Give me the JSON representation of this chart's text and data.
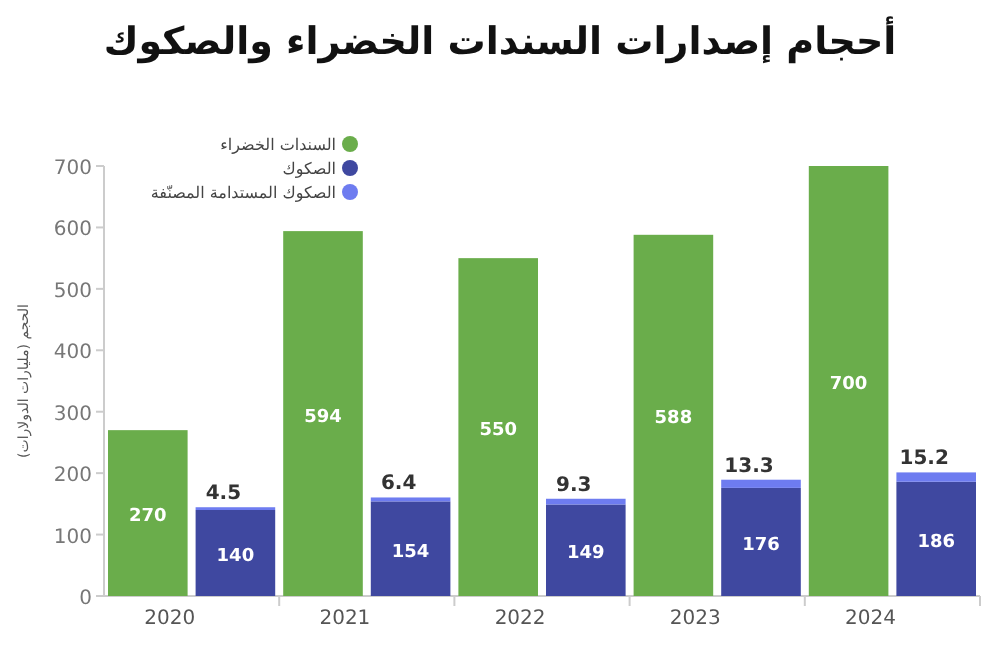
{
  "chart_data": {
    "type": "bar",
    "title": "أحجام إصدارات السندات الخضراء والصكوك",
    "ylabel": "الحجم (مليارات الدولارات)",
    "categories": [
      "2020",
      null,
      "2021",
      null,
      "2022",
      null,
      "2023",
      null,
      "2024",
      null
    ],
    "series": [
      {
        "name": "السندات الخضراء",
        "color": "#6aad4b",
        "values": [
          270,
          null,
          594,
          null,
          550,
          null,
          588,
          null,
          700,
          null
        ]
      },
      {
        "name": "الصكوك",
        "color": "#3f48a0",
        "values": [
          null,
          140,
          null,
          154,
          null,
          149,
          null,
          176,
          null,
          186
        ]
      },
      {
        "name": "الصكوك المستدامة المصنّفة",
        "color": "#6e7cf0",
        "values": [
          null,
          4.5,
          null,
          6.4,
          null,
          9.3,
          null,
          13.3,
          null,
          15.2
        ]
      }
    ],
    "stacked": true,
    "ylim": [
      0,
      700
    ],
    "yticks": [
      0,
      100,
      200,
      300,
      400,
      500,
      600,
      700
    ],
    "data_labels": true,
    "legend": "top left"
  }
}
